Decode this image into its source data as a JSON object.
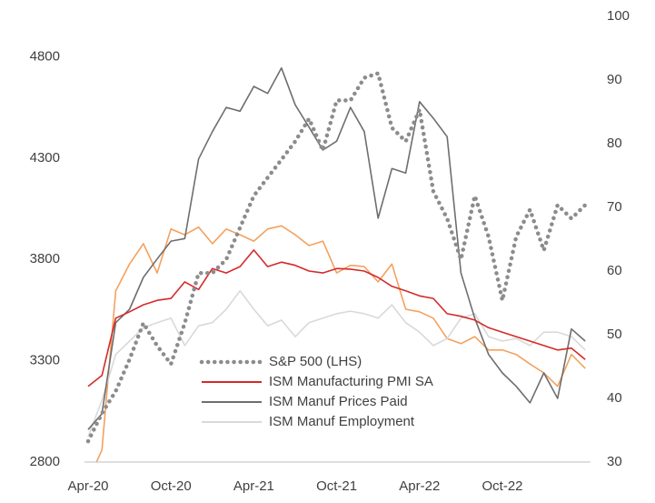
{
  "chart_data": {
    "type": "line",
    "categories": [
      "Apr-20",
      null,
      null,
      null,
      null,
      null,
      "Oct-20",
      null,
      null,
      null,
      null,
      null,
      "Apr-21",
      null,
      null,
      null,
      null,
      null,
      "Oct-21",
      null,
      null,
      null,
      null,
      null,
      "Apr-22",
      null,
      null,
      null,
      null,
      null,
      "Oct-22",
      null,
      null,
      null,
      null,
      null,
      null
    ],
    "ylim": [
      2800,
      5000
    ],
    "yticks": [
      2800,
      3300,
      3800,
      4300,
      4800
    ],
    "y2lim": [
      30,
      100
    ],
    "y2ticks": [
      30,
      40,
      50,
      60,
      70,
      80,
      90,
      100
    ],
    "legend": "lower center",
    "series": [
      {
        "name": "S&P 500 (LHS)",
        "color": "#8c8c8c",
        "style": "dotted",
        "axis": "y",
        "values": [
          2903,
          3040,
          3150,
          3307,
          3486,
          3374,
          3284,
          3486,
          3733,
          3733,
          3800,
          3957,
          4114,
          4204,
          4293,
          4383,
          4495,
          4338,
          4585,
          4585,
          4697,
          4719,
          4450,
          4383,
          4540,
          4136,
          4002,
          3800,
          4114,
          3912,
          3598,
          3912,
          4046,
          3845,
          4069,
          4002,
          4069
        ]
      },
      {
        "name": "ISM Manufacturing PMI SA",
        "color": "#d42a2a",
        "style": "solid",
        "axis": "y2",
        "values": [
          41.9,
          43.6,
          52.6,
          53.6,
          54.7,
          55.4,
          55.7,
          58.3,
          57.1,
          60.4,
          59.7,
          60.7,
          63.3,
          60.7,
          61.4,
          60.9,
          60.0,
          59.7,
          60.4,
          60.3,
          60.0,
          59.0,
          57.6,
          56.9,
          56.1,
          55.7,
          53.3,
          52.9,
          52.3,
          51.1,
          50.4,
          49.7,
          49.0,
          48.3,
          47.6,
          47.9,
          46.1
        ]
      },
      {
        "name": "ISM Manuf Prices Paid",
        "color": "#6e6e6e",
        "style": "solid",
        "axis": "y2",
        "values": [
          35.1,
          37.6,
          51.9,
          54.0,
          59.0,
          61.9,
          64.7,
          65.1,
          77.6,
          81.9,
          85.7,
          85.1,
          89.0,
          87.9,
          91.9,
          86.1,
          82.6,
          79.0,
          80.4,
          85.7,
          81.9,
          68.3,
          76.1,
          75.4,
          86.6,
          84.0,
          81.1,
          59.7,
          52.6,
          46.9,
          44.0,
          41.9,
          39.3,
          44.0,
          40.0,
          50.9,
          49.0
        ]
      },
      {
        "name": "ISM Manuf Employment",
        "color": "#d9d9d9",
        "style": "solid",
        "axis": "y2",
        "values": [
          34.0,
          39.7,
          46.9,
          49.0,
          51.1,
          51.9,
          52.6,
          48.3,
          51.4,
          51.9,
          54.0,
          56.9,
          54.0,
          51.4,
          52.3,
          49.7,
          51.9,
          52.6,
          53.3,
          53.7,
          53.3,
          52.6,
          54.7,
          51.9,
          50.4,
          48.3,
          49.4,
          52.6,
          53.3,
          49.7,
          49.0,
          49.4,
          48.3,
          50.4,
          50.4,
          49.7,
          47.6
        ]
      },
      {
        "color": "#f4a15e",
        "style": "solid",
        "axis": "y2",
        "values": [
          27.1,
          31.9,
          56.9,
          61.1,
          64.3,
          59.7,
          66.6,
          65.7,
          66.9,
          64.3,
          66.6,
          65.7,
          64.7,
          66.6,
          67.1,
          65.7,
          64.0,
          64.7,
          59.7,
          60.9,
          60.7,
          58.3,
          61.1,
          54.0,
          53.6,
          52.6,
          49.4,
          48.6,
          49.7,
          47.6,
          47.6,
          46.9,
          45.4,
          44.0,
          41.9,
          46.9,
          44.7
        ]
      }
    ]
  }
}
